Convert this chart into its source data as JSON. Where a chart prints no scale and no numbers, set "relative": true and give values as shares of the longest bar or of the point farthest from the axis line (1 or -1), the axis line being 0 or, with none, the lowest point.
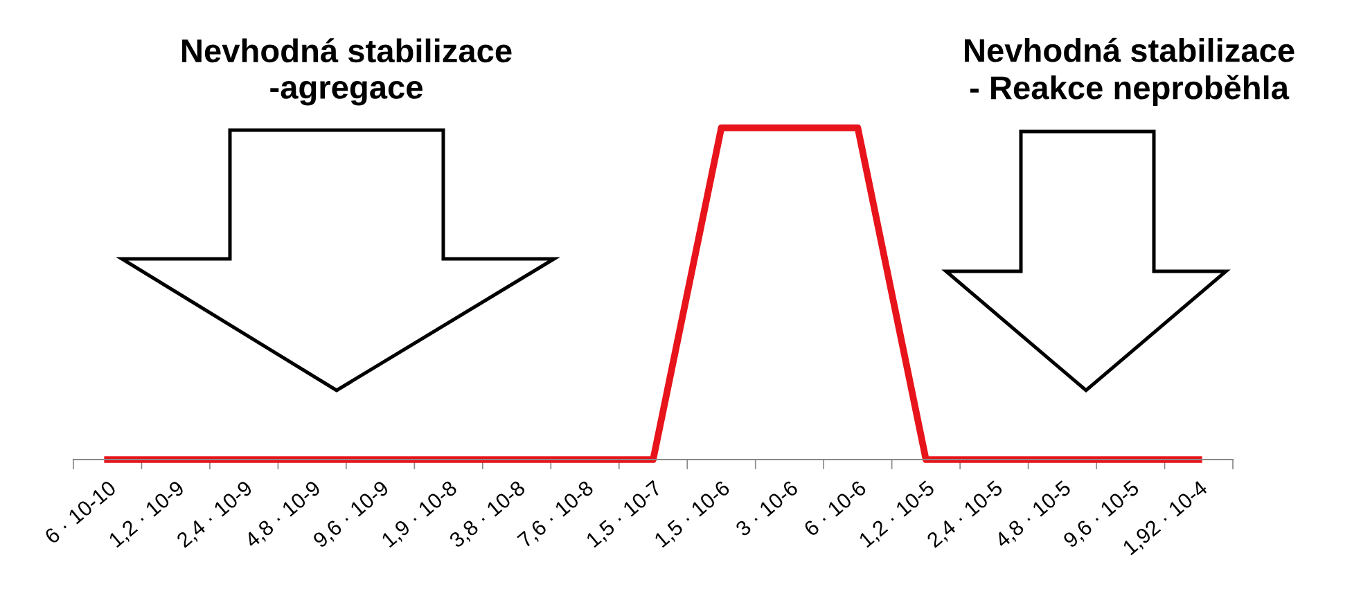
{
  "chart_data": {
    "type": "line",
    "relative": true,
    "categories": [
      "6 · 10-10",
      "1,2 · 10-9",
      "2,4 · 10-9",
      "4,8 · 10-9",
      "9,6 · 10-9",
      "1,9 · 10-8",
      "3,8 · 10-8",
      "7,6 · 10-8",
      "1,5 · 10-7",
      "1,5 · 10-6",
      "3 · 10-6",
      "6 · 10-6",
      "1,2 · 10-5",
      "2,4 · 10-5",
      "4,8 · 10-5",
      "9,6 · 10-5",
      "1,92 · 10-4"
    ],
    "series": [
      {
        "color": "#e8141b",
        "values": [
          0,
          0,
          0,
          0,
          0,
          0,
          0,
          0,
          0,
          1,
          1,
          1,
          0,
          0,
          0,
          0,
          0
        ]
      }
    ],
    "annotations": [
      "Nevhodná stabilizace\n-agregace",
      "Nevhodná stabilizace\n- Reakce neproběhla"
    ],
    "marker": "none",
    "line_style": "solid",
    "grid": false,
    "legend": false,
    "tick_labels": "x"
  }
}
